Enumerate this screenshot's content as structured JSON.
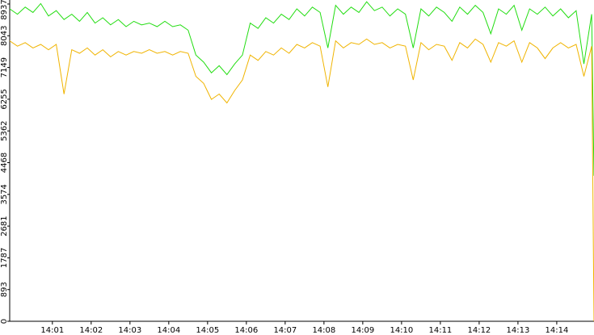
{
  "chart_data": {
    "type": "line",
    "x": [
      -0.1,
      0.1,
      0.3,
      0.5,
      0.7,
      0.9,
      1.1,
      1.3,
      1.5,
      1.7,
      1.9,
      2.1,
      2.3,
      2.5,
      2.7,
      2.9,
      3.1,
      3.3,
      3.5,
      3.7,
      3.9,
      4.1,
      4.3,
      4.5,
      4.7,
      4.9,
      5.1,
      5.3,
      5.5,
      5.7,
      5.9,
      6.1,
      6.3,
      6.5,
      6.7,
      6.9,
      7.1,
      7.3,
      7.5,
      7.7,
      7.9,
      8.1,
      8.3,
      8.5,
      8.7,
      8.9,
      9.1,
      9.3,
      9.5,
      9.7,
      9.9,
      10.1,
      10.3,
      10.5,
      10.7,
      10.9,
      11.1,
      11.3,
      11.5,
      11.7,
      11.9,
      12.1,
      12.3,
      12.5,
      12.7,
      12.9,
      13.1,
      13.3,
      13.5,
      13.7,
      13.9,
      14.1,
      14.3,
      14.5,
      14.7,
      14.9,
      14.96
    ],
    "series": [
      {
        "color": "#22dd11",
        "values": [
          8800,
          8650,
          8850,
          8700,
          8950,
          8600,
          8750,
          8500,
          8650,
          8450,
          8700,
          8400,
          8550,
          8350,
          8500,
          8300,
          8450,
          8350,
          8400,
          8300,
          8450,
          8300,
          8350,
          8200,
          7500,
          7300,
          7000,
          7200,
          6950,
          7250,
          7500,
          8400,
          8250,
          8550,
          8400,
          8650,
          8500,
          8800,
          8600,
          8850,
          8700,
          7700,
          8900,
          8650,
          8850,
          8700,
          9000,
          8750,
          8850,
          8600,
          8800,
          8650,
          7700,
          8800,
          8600,
          8850,
          8700,
          8450,
          8850,
          8650,
          8900,
          8700,
          8100,
          8800,
          8650,
          8900,
          8200,
          8800,
          8650,
          8850,
          8600,
          8800,
          8550,
          8750,
          7250,
          8650,
          4100
        ]
      },
      {
        "color": "#f0b400",
        "values": [
          7900,
          7750,
          7850,
          7700,
          7800,
          7650,
          7800,
          6400,
          7650,
          7550,
          7700,
          7500,
          7650,
          7450,
          7600,
          7500,
          7600,
          7550,
          7650,
          7550,
          7600,
          7500,
          7600,
          7550,
          6900,
          6700,
          6250,
          6400,
          6150,
          6500,
          6800,
          7500,
          7350,
          7600,
          7500,
          7700,
          7550,
          7800,
          7700,
          7850,
          7750,
          6600,
          7900,
          7700,
          7850,
          7800,
          7950,
          7800,
          7850,
          7700,
          7800,
          7750,
          6800,
          7850,
          7650,
          7800,
          7750,
          7350,
          7850,
          7700,
          7950,
          7800,
          7300,
          7850,
          7750,
          7900,
          7300,
          7850,
          7700,
          7400,
          7700,
          7850,
          7700,
          7800,
          6900,
          7750,
          0
        ]
      }
    ],
    "xlim": [
      -0.1,
      14.96
    ],
    "xticks": [
      {
        "value": 1,
        "label": "14:01"
      },
      {
        "value": 2,
        "label": "14:02"
      },
      {
        "value": 3,
        "label": "14:03"
      },
      {
        "value": 4,
        "label": "14:04"
      },
      {
        "value": 5,
        "label": "14:05"
      },
      {
        "value": 6,
        "label": "14:06"
      },
      {
        "value": 7,
        "label": "14:07"
      },
      {
        "value": 8,
        "label": "14:08"
      },
      {
        "value": 9,
        "label": "14:09"
      },
      {
        "value": 10,
        "label": "14:10"
      },
      {
        "value": 11,
        "label": "14:11"
      },
      {
        "value": 12,
        "label": "14:12"
      },
      {
        "value": 13,
        "label": "14:13"
      },
      {
        "value": 14,
        "label": "14:14"
      }
    ],
    "ylim": [
      0,
      9050
    ],
    "yticks": [
      0,
      893,
      1787,
      2681,
      3574,
      4468,
      5362,
      6255,
      7149,
      8043,
      8937
    ]
  }
}
